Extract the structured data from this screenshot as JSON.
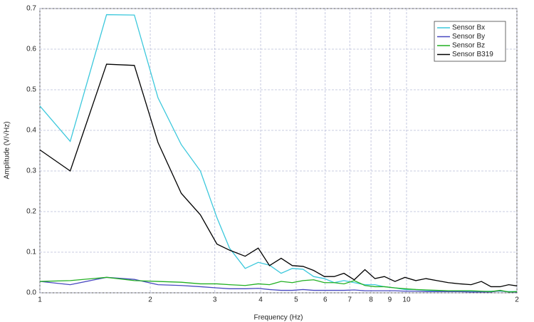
{
  "chart_data": {
    "type": "line",
    "x_label": "Frequency (Hz)",
    "y_label": "Amplitude (V/√Hz)",
    "x": [
      1,
      1.21,
      1.52,
      1.81,
      2.1,
      2.43,
      2.74,
      3.04,
      3.29,
      3.63,
      3.94,
      4.23,
      4.55,
      4.88,
      5.22,
      5.58,
      5.97,
      6.35,
      6.75,
      7.2,
      7.7,
      8.2,
      8.7,
      9.3,
      9.9,
      10.6,
      11.3,
      12.1,
      13,
      14,
      15,
      16,
      17,
      18,
      19,
      20
    ],
    "series": [
      {
        "name": "Sensor Bx",
        "color": "#3cc8dc",
        "values": [
          0.46,
          0.373,
          0.685,
          0.684,
          0.48,
          0.365,
          0.3,
          0.185,
          0.11,
          0.06,
          0.075,
          0.068,
          0.048,
          0.06,
          0.058,
          0.04,
          0.035,
          0.025,
          0.03,
          0.025,
          0.02,
          0.02,
          0.015,
          0.012,
          0.008,
          0.008,
          0.006,
          0.005,
          0.005,
          0.004,
          0.004,
          0.003,
          0.004,
          0.004,
          0.003,
          0.003
        ]
      },
      {
        "name": "Sensor By",
        "color": "#4848c0",
        "values": [
          0.028,
          0.02,
          0.038,
          0.033,
          0.02,
          0.018,
          0.015,
          0.012,
          0.01,
          0.01,
          0.011,
          0.008,
          0.006,
          0.006,
          0.008,
          0.006,
          0.006,
          0.006,
          0.006,
          0.007,
          0.005,
          0.005,
          0.005,
          0.005,
          0.004,
          0.004,
          0.003,
          0.003,
          0.003,
          0.003,
          0.002,
          0.002,
          0.002,
          0.005,
          0.002,
          0.002
        ]
      },
      {
        "name": "Sensor Bz",
        "color": "#22b022",
        "values": [
          0.028,
          0.03,
          0.038,
          0.03,
          0.028,
          0.026,
          0.022,
          0.022,
          0.02,
          0.018,
          0.022,
          0.02,
          0.028,
          0.025,
          0.03,
          0.032,
          0.025,
          0.025,
          0.022,
          0.03,
          0.018,
          0.015,
          0.015,
          0.012,
          0.01,
          0.008,
          0.007,
          0.006,
          0.005,
          0.005,
          0.005,
          0.004,
          0.003,
          0.006,
          0.002,
          0.003
        ]
      },
      {
        "name": "Sensor B319",
        "color": "#000000",
        "values": [
          0.352,
          0.3,
          0.563,
          0.56,
          0.37,
          0.245,
          0.192,
          0.12,
          0.105,
          0.09,
          0.11,
          0.067,
          0.085,
          0.067,
          0.065,
          0.055,
          0.04,
          0.04,
          0.048,
          0.032,
          0.057,
          0.035,
          0.04,
          0.028,
          0.038,
          0.03,
          0.035,
          0.03,
          0.025,
          0.022,
          0.02,
          0.028,
          0.015,
          0.015,
          0.02,
          0.017
        ]
      }
    ],
    "xlim": [
      1,
      20
    ],
    "x_scale": "log",
    "xticks": [
      1,
      2,
      3,
      4,
      5,
      6,
      7,
      8,
      9,
      10,
      {
        "value": 20,
        "label": "2"
      }
    ],
    "ylim": [
      0,
      0.7
    ],
    "yticks": [
      {
        "value": 0,
        "label": "0.0"
      },
      0.1,
      0.2,
      0.3,
      0.4,
      0.5,
      0.6,
      0.7
    ],
    "grid": true,
    "legend": "upper right"
  }
}
